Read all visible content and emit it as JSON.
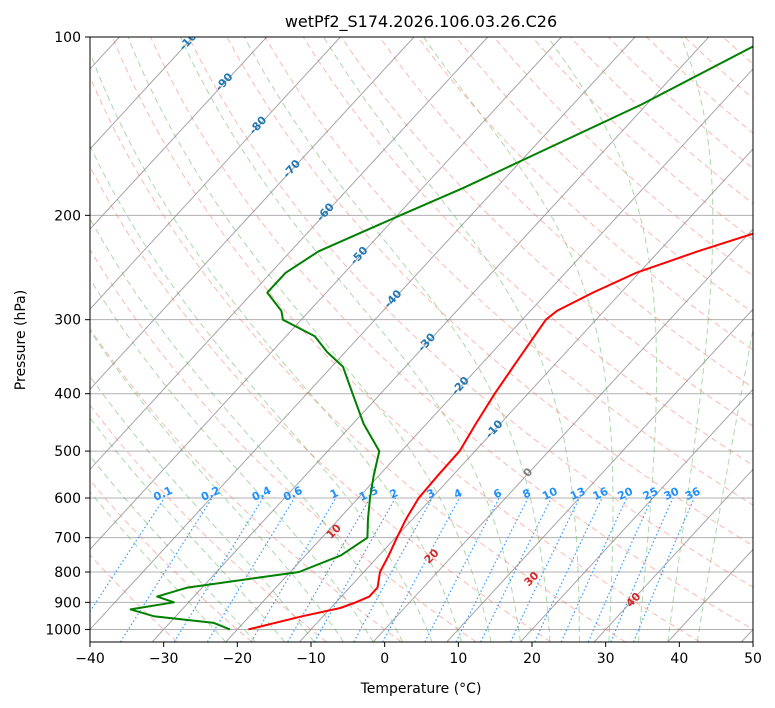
{
  "chart_data": {
    "type": "line",
    "title": "wetPf2_S174.2026.106.03.26.C26",
    "xlabel": "Temperature (°C)",
    "ylabel": "Pressure (hPa)",
    "xlim": [
      -40,
      50
    ],
    "ylim": [
      1050,
      100
    ],
    "x_ticks": [
      "−40",
      "−30",
      "−20",
      "−10",
      "0",
      "10",
      "20",
      "30",
      "40",
      "50"
    ],
    "x_tick_values": [
      -40,
      -30,
      -20,
      -10,
      0,
      10,
      20,
      30,
      40,
      50
    ],
    "y_ticks": [
      "100",
      "200",
      "300",
      "400",
      "500",
      "600",
      "700",
      "800",
      "900",
      "1000"
    ],
    "y_tick_values": [
      100,
      200,
      300,
      400,
      500,
      600,
      700,
      800,
      900,
      1000
    ],
    "grid": true,
    "colors": {
      "temperature": "#ff0000",
      "dewpoint": "#008000",
      "dry_adiabat": "#fa8072",
      "moist_adiabat": "#2ca02c",
      "mixing_ratio": "#1e90ff",
      "isotherm": "#808080",
      "dry_adiabat_label": "#d62728",
      "moist_label": "#1f77b4",
      "mixing_label": "#1e90ff"
    },
    "series": [
      {
        "name": "Temperature",
        "color": "#ff0000",
        "points": [
          [
            100,
            40.8
          ],
          [
            130,
            29.2
          ],
          [
            160,
            17.9
          ],
          [
            190,
            8.9
          ],
          [
            210,
            2.3
          ],
          [
            230,
            -4.7
          ],
          [
            250,
            -10.4
          ],
          [
            270,
            -13.8
          ],
          [
            290,
            -16.4
          ],
          [
            300,
            -16.8
          ],
          [
            320,
            -16.3
          ],
          [
            350,
            -15.6
          ],
          [
            400,
            -14.5
          ],
          [
            450,
            -13.3
          ],
          [
            500,
            -12.1
          ],
          [
            550,
            -12.0
          ],
          [
            600,
            -11.8
          ],
          [
            650,
            -10.9
          ],
          [
            700,
            -9.8
          ],
          [
            750,
            -8.7
          ],
          [
            800,
            -7.8
          ],
          [
            850,
            -6.2
          ],
          [
            880,
            -6.2
          ],
          [
            900,
            -7.3
          ],
          [
            920,
            -8.7
          ],
          [
            950,
            -12.8
          ],
          [
            1000,
            -18.5
          ]
        ]
      },
      {
        "name": "Dewpoint",
        "color": "#008000",
        "points": [
          [
            100,
            -21.5
          ],
          [
            130,
            -30.7
          ],
          [
            160,
            -39.5
          ],
          [
            180,
            -44.5
          ],
          [
            200,
            -49.6
          ],
          [
            230,
            -56.2
          ],
          [
            250,
            -58.0
          ],
          [
            270,
            -58.0
          ],
          [
            290,
            -53.8
          ],
          [
            300,
            -52.5
          ],
          [
            320,
            -46.1
          ],
          [
            340,
            -42.5
          ],
          [
            360,
            -38.5
          ],
          [
            400,
            -33.8
          ],
          [
            450,
            -28.5
          ],
          [
            500,
            -23.0
          ],
          [
            550,
            -20.7
          ],
          [
            600,
            -18.4
          ],
          [
            650,
            -16.1
          ],
          [
            700,
            -13.8
          ],
          [
            750,
            -15.2
          ],
          [
            800,
            -18.8
          ],
          [
            850,
            -32.0
          ],
          [
            880,
            -35.0
          ],
          [
            900,
            -32.0
          ],
          [
            925,
            -37.0
          ],
          [
            950,
            -33.0
          ],
          [
            975,
            -24.0
          ],
          [
            1000,
            -21.0
          ]
        ]
      }
    ],
    "dry_adiabat_labels": [
      "10",
      "20",
      "30",
      "40"
    ],
    "moist_adiabat_labels": [
      "-100",
      "-90",
      "-80",
      "-70",
      "-60",
      "-50",
      "-40",
      "-30",
      "-20",
      "-10",
      "0"
    ],
    "mixing_ratio_labels": [
      "0.1",
      "0.2",
      "0.4",
      "0.6",
      "1",
      "1.5",
      "2",
      "3",
      "4",
      "6",
      "8",
      "10",
      "13",
      "16",
      "20",
      "25",
      "30",
      "36"
    ]
  }
}
